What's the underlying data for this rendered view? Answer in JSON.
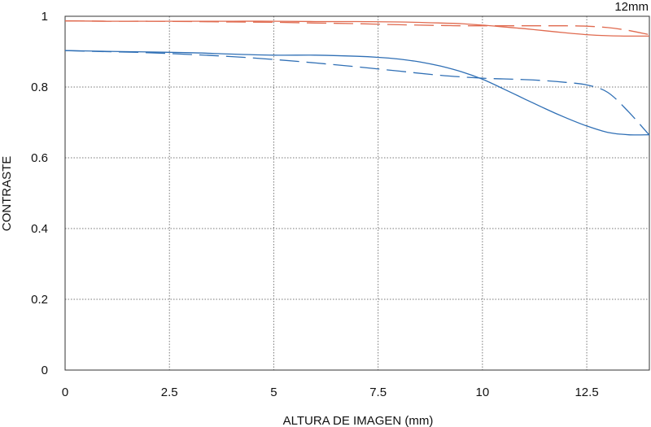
{
  "chart_data": {
    "type": "line",
    "title": "12mm",
    "xlabel": "ALTURA DE IMAGEN (mm)",
    "ylabel": "CONTRASTE",
    "xlim": [
      0,
      14
    ],
    "ylim": [
      0,
      1
    ],
    "x_ticks": [
      0,
      2.5,
      5,
      7.5,
      10,
      12.5
    ],
    "x_tick_labels": [
      "0",
      "2.5",
      "5",
      "7.5",
      "10",
      "12.5"
    ],
    "y_ticks": [
      0,
      0.2,
      0.4,
      0.6,
      0.8,
      1
    ],
    "y_tick_labels": [
      "0",
      "0.2",
      "0.4",
      "0.6",
      "0.8",
      "1"
    ],
    "grid": true,
    "series": [
      {
        "color": "#e06a4f",
        "dash": false,
        "x": [
          0,
          1,
          2,
          3,
          4,
          5,
          6,
          7,
          8,
          9,
          9.5,
          10,
          10.5,
          11,
          11.5,
          12,
          12.5,
          13,
          13.5,
          14
        ],
        "y": [
          0.987,
          0.986,
          0.986,
          0.986,
          0.986,
          0.986,
          0.985,
          0.985,
          0.984,
          0.981,
          0.979,
          0.975,
          0.97,
          0.965,
          0.959,
          0.953,
          0.948,
          0.945,
          0.944,
          0.944
        ]
      },
      {
        "color": "#e06a4f",
        "dash": true,
        "x": [
          0,
          1,
          2,
          3,
          4,
          5,
          6,
          7,
          8,
          9,
          9.5,
          10,
          10.5,
          11,
          11.5,
          12,
          12.5,
          13,
          13.5,
          14
        ],
        "y": [
          0.987,
          0.986,
          0.986,
          0.985,
          0.984,
          0.983,
          0.981,
          0.979,
          0.976,
          0.974,
          0.973,
          0.973,
          0.973,
          0.973,
          0.973,
          0.973,
          0.972,
          0.968,
          0.96,
          0.948
        ]
      },
      {
        "color": "#2f6fb5",
        "dash": false,
        "x": [
          0,
          1,
          2,
          3,
          4,
          5,
          6,
          7,
          7.5,
          8,
          8.5,
          9,
          9.5,
          10,
          10.5,
          11,
          11.5,
          12,
          12.5,
          13,
          13.5,
          14
        ],
        "y": [
          0.903,
          0.901,
          0.899,
          0.897,
          0.893,
          0.89,
          0.89,
          0.887,
          0.884,
          0.879,
          0.871,
          0.859,
          0.843,
          0.822,
          0.795,
          0.767,
          0.739,
          0.713,
          0.69,
          0.672,
          0.665,
          0.665
        ]
      },
      {
        "color": "#2f6fb5",
        "dash": true,
        "x": [
          0,
          1,
          2,
          3,
          4,
          5,
          6,
          7,
          8,
          9,
          10,
          10.5,
          11,
          11.5,
          12,
          12.5,
          13,
          13.5,
          14
        ],
        "y": [
          0.903,
          0.9,
          0.897,
          0.892,
          0.886,
          0.878,
          0.868,
          0.857,
          0.845,
          0.833,
          0.825,
          0.823,
          0.821,
          0.818,
          0.813,
          0.806,
          0.785,
          0.73,
          0.664
        ]
      }
    ]
  }
}
